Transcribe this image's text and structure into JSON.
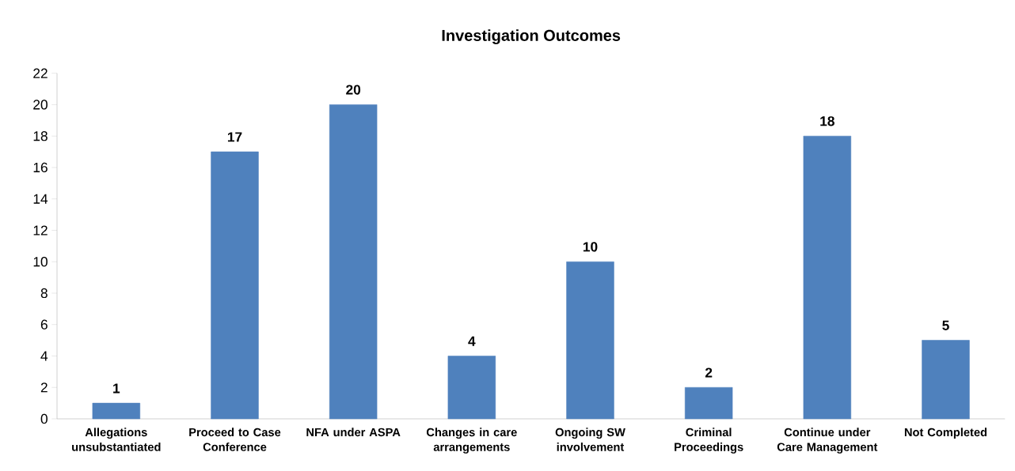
{
  "chart_data": {
    "type": "bar",
    "title": "Investigation Outcomes",
    "categories": [
      "Allegations unsubstantiated",
      "Proceed to Case Conference",
      "NFA under ASPA",
      "Changes in care arrangements",
      "Ongoing SW involvement",
      "Criminal Proceedings",
      "Continue under Care Management",
      "Not Completed"
    ],
    "values": [
      1,
      17,
      20,
      4,
      10,
      2,
      18,
      5
    ],
    "color": "#4f81bd",
    "ylim": [
      0,
      22
    ],
    "yticks": [
      0,
      2,
      4,
      6,
      8,
      10,
      12,
      14,
      16,
      18,
      20,
      22
    ],
    "data_labels": true
  }
}
